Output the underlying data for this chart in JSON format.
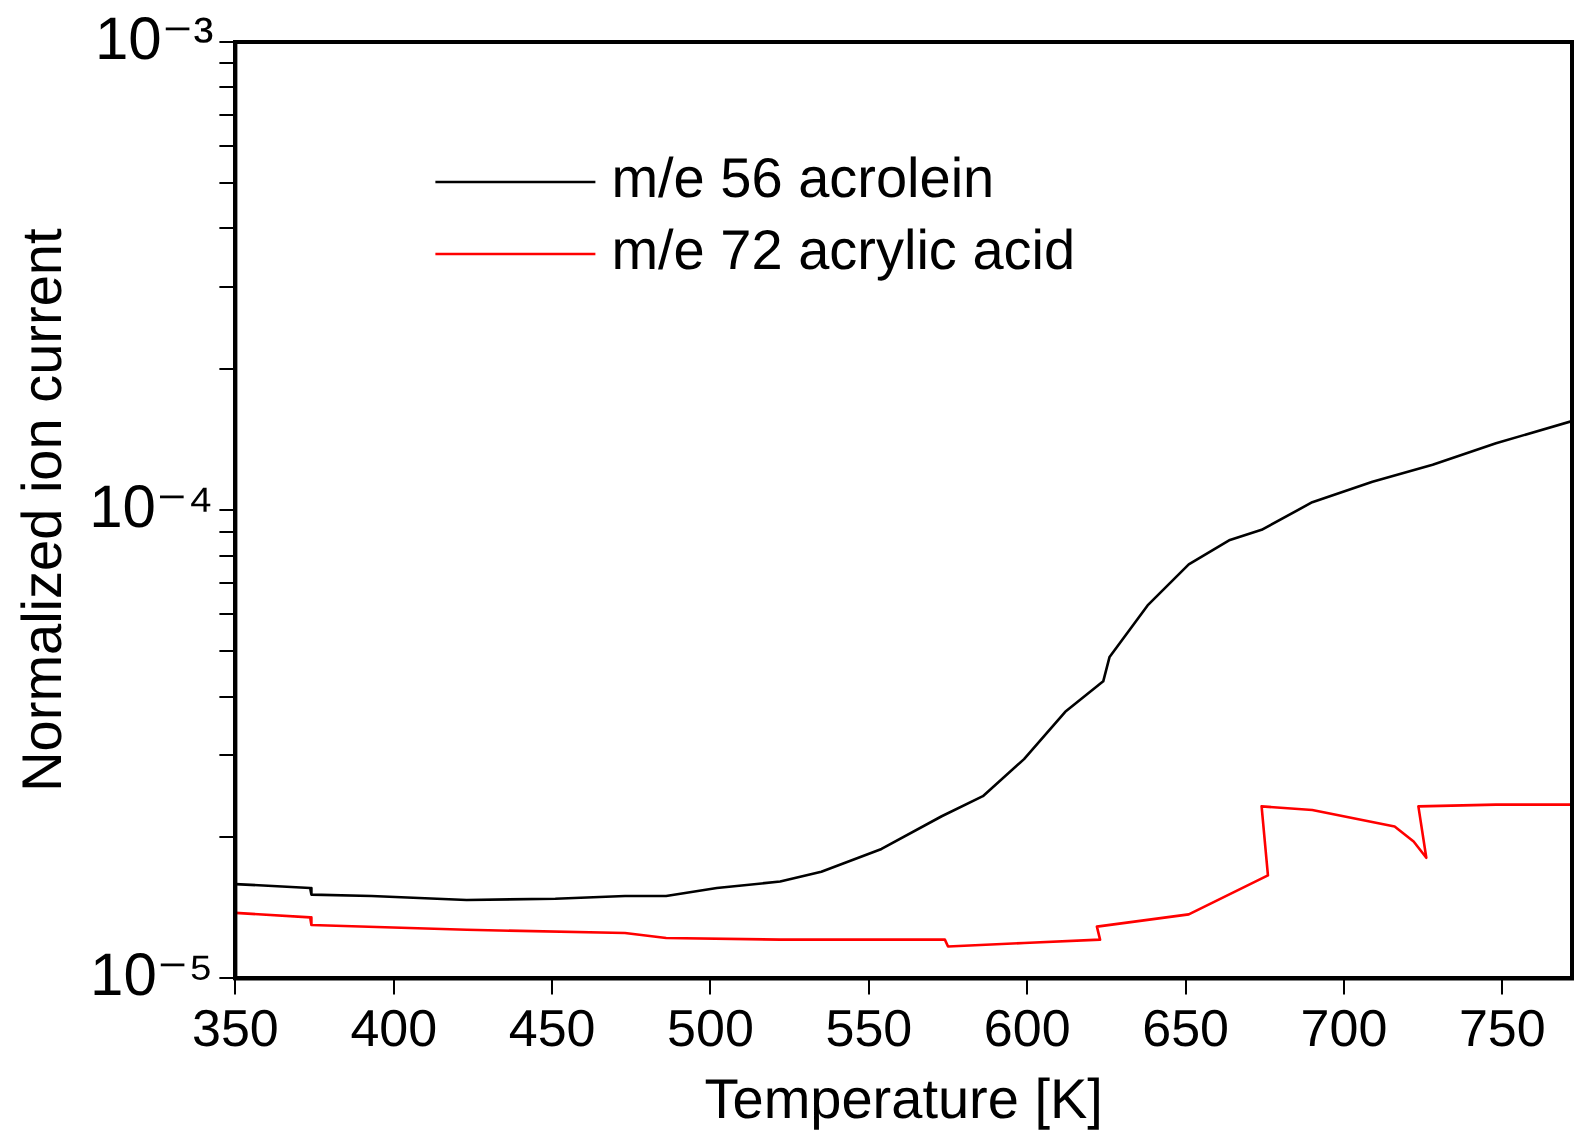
{
  "chart_data": {
    "type": "line",
    "xlabel": "Temperature [K]",
    "ylabel": "Normalized ion current",
    "log": "y",
    "grid": false,
    "legend": "top left",
    "marker": "none",
    "line_style": "solid",
    "xlim": [
      350,
      772
    ],
    "xticks": [
      350,
      400,
      450,
      500,
      550,
      600,
      650,
      700,
      750
    ],
    "ylim": [
      1e-05,
      0.001
    ],
    "yticks": [
      {
        "value": 1e-05,
        "label": "10⁻⁵"
      },
      {
        "value": 2e-05,
        "label": null
      },
      {
        "value": 3e-05,
        "label": null
      },
      {
        "value": 4e-05,
        "label": null
      },
      {
        "value": 5e-05,
        "label": null
      },
      {
        "value": 6e-05,
        "label": null
      },
      {
        "value": 7e-05,
        "label": null
      },
      {
        "value": 8e-05,
        "label": null
      },
      {
        "value": 9e-05,
        "label": null
      },
      {
        "value": 0.0001,
        "label": "10⁻⁴"
      },
      {
        "value": 0.0002,
        "label": null
      },
      {
        "value": 0.0003,
        "label": null
      },
      {
        "value": 0.0004,
        "label": null
      },
      {
        "value": 0.0005,
        "label": null
      },
      {
        "value": 0.0006,
        "label": null
      },
      {
        "value": 0.0007,
        "label": null
      },
      {
        "value": 0.0008,
        "label": null
      },
      {
        "value": 0.0009,
        "label": null
      },
      {
        "value": 0.001,
        "label": "10⁻³"
      }
    ],
    "series": [
      {
        "name": "m/e 56 acrolein",
        "color": "#000000",
        "x": [
          350,
          373.6,
          374,
          393,
          423,
          451,
          473,
          486,
          502,
          522,
          535,
          554,
          573,
          586,
          599,
          612,
          624,
          626,
          638,
          651,
          664,
          674,
          690,
          709,
          728,
          748,
          772
        ],
        "values": [
          1.59e-05,
          1.56e-05,
          1.51e-05,
          1.5e-05,
          1.47e-05,
          1.48e-05,
          1.5e-05,
          1.5e-05,
          1.56e-05,
          1.61e-05,
          1.69e-05,
          1.89e-05,
          2.22e-05,
          2.45e-05,
          2.94e-05,
          3.71e-05,
          4.31e-05,
          4.86e-05,
          6.26e-05,
          7.66e-05,
          8.64e-05,
          9.08e-05,
          0.000104,
          0.000115,
          0.000125,
          0.000139,
          0.000155
        ]
      },
      {
        "name": "m/e 72 acrylic acid",
        "color": "#ff0000",
        "x": [
          350,
          373.6,
          374,
          423,
          473,
          486,
          522,
          574,
          575,
          599,
          623,
          622,
          651,
          676,
          674,
          690,
          716,
          722,
          726,
          723.5,
          748,
          772
        ],
        "values": [
          1.38e-05,
          1.35e-05,
          1.3e-05,
          1.27e-05,
          1.25e-05,
          1.22e-05,
          1.21e-05,
          1.21e-05,
          1.17e-05,
          1.19e-05,
          1.21e-05,
          1.29e-05,
          1.37e-05,
          1.66e-05,
          2.33e-05,
          2.29e-05,
          2.11e-05,
          1.96e-05,
          1.81e-05,
          2.33e-05,
          2.35e-05,
          2.35e-05
        ]
      }
    ]
  }
}
